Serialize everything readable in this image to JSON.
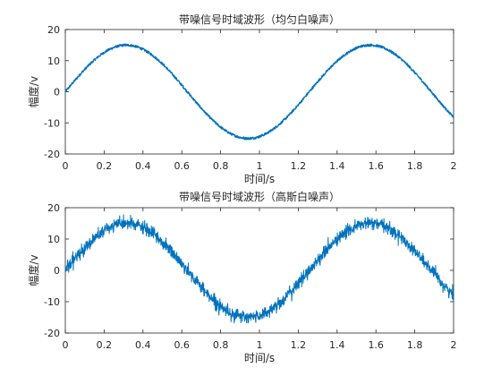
{
  "chart_data": [
    {
      "type": "line",
      "title": "带噪信号时域波形（均匀白噪声）",
      "xlabel": "时间/s",
      "ylabel": "幅度/v",
      "xlim": [
        0,
        2
      ],
      "ylim": [
        -20,
        20
      ],
      "xticks": [
        "0",
        "0.2",
        "0.4",
        "0.6",
        "0.8",
        "1",
        "1.2",
        "1.4",
        "1.6",
        "1.8",
        "2"
      ],
      "yticks": [
        "-20",
        "-10",
        "0",
        "10",
        "20"
      ],
      "grid": false,
      "line_color": "#0072BD",
      "series": [
        {
          "function": "15*sin(5*t)",
          "amplitude": 15,
          "angular_frequency": 5,
          "noise": "uniform",
          "noise_amplitude": 0.4,
          "x": [
            0,
            0.1,
            0.2,
            0.3,
            0.4,
            0.5,
            0.6,
            0.7,
            0.8,
            0.9,
            1.0,
            1.1,
            1.2,
            1.3,
            1.4,
            1.5,
            1.6,
            1.7,
            1.8,
            1.9,
            2.0
          ],
          "y": [
            0,
            7.2,
            12.6,
            15.0,
            13.6,
            9.0,
            2.1,
            -5.3,
            -11.3,
            -14.7,
            -14.4,
            -10.6,
            -4.2,
            3.2,
            9.9,
            14.1,
            14.9,
            12.0,
            6.2,
            -1.1,
            -8.2
          ]
        }
      ]
    },
    {
      "type": "line",
      "title": "带噪信号时域波形（高斯白噪声）",
      "xlabel": "时间/s",
      "ylabel": "幅度/v",
      "xlim": [
        0,
        2
      ],
      "ylim": [
        -20,
        20
      ],
      "xticks": [
        "0",
        "0.2",
        "0.4",
        "0.6",
        "0.8",
        "1",
        "1.2",
        "1.4",
        "1.6",
        "1.8",
        "2"
      ],
      "yticks": [
        "-20",
        "-10",
        "0",
        "10",
        "20"
      ],
      "grid": false,
      "line_color": "#0072BD",
      "series": [
        {
          "function": "15*sin(5*t)",
          "amplitude": 15,
          "angular_frequency": 5,
          "noise": "gaussian",
          "noise_std": 1.0,
          "x": [
            0,
            0.1,
            0.2,
            0.3,
            0.4,
            0.5,
            0.6,
            0.7,
            0.8,
            0.9,
            1.0,
            1.1,
            1.2,
            1.3,
            1.4,
            1.5,
            1.6,
            1.7,
            1.8,
            1.9,
            2.0
          ],
          "y": [
            0,
            7.2,
            12.6,
            15.0,
            13.6,
            9.0,
            2.1,
            -5.3,
            -11.3,
            -14.7,
            -14.4,
            -10.6,
            -4.2,
            3.2,
            9.9,
            14.1,
            14.9,
            12.0,
            6.2,
            -1.1,
            -8.2
          ]
        }
      ]
    }
  ]
}
